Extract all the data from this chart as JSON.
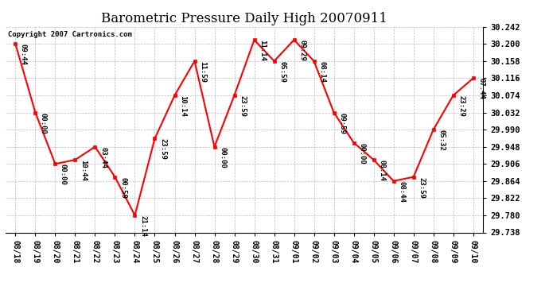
{
  "title": "Barometric Pressure Daily High 20070911",
  "copyright": "Copyright 2007 Cartronics.com",
  "x_labels": [
    "08/18",
    "08/19",
    "08/20",
    "08/21",
    "08/22",
    "08/23",
    "08/24",
    "08/25",
    "08/26",
    "08/27",
    "08/28",
    "08/29",
    "08/30",
    "08/31",
    "09/01",
    "09/02",
    "09/03",
    "09/04",
    "09/05",
    "09/06",
    "09/07",
    "09/08",
    "09/09",
    "09/10"
  ],
  "y_values": [
    30.2,
    30.032,
    29.906,
    29.916,
    29.948,
    29.874,
    29.78,
    29.968,
    30.074,
    30.158,
    29.948,
    30.074,
    30.21,
    30.158,
    30.21,
    30.158,
    30.032,
    29.958,
    29.916,
    29.864,
    29.874,
    29.99,
    30.074,
    30.116
  ],
  "point_labels": [
    "09:44",
    "00:00",
    "00:00",
    "10:44",
    "03:44",
    "00:59",
    "21:14",
    "23:59",
    "10:14",
    "11:59",
    "00:00",
    "23:59",
    "11:14",
    "05:59",
    "09:29",
    "08:14",
    "09:59",
    "00:00",
    "08:14",
    "08:44",
    "23:59",
    "05:32",
    "23:29",
    "07:44"
  ],
  "ylim_min": 29.738,
  "ylim_max": 30.242,
  "yticks": [
    29.738,
    29.78,
    29.822,
    29.864,
    29.906,
    29.948,
    29.99,
    30.032,
    30.074,
    30.116,
    30.158,
    30.2,
    30.242
  ],
  "line_color": "red",
  "marker_color": "red",
  "marker_face": "red",
  "bg_color": "white",
  "grid_color": "#aaaaaa",
  "label_fontsize": 6.5,
  "title_fontsize": 12,
  "copyright_fontsize": 6.5
}
